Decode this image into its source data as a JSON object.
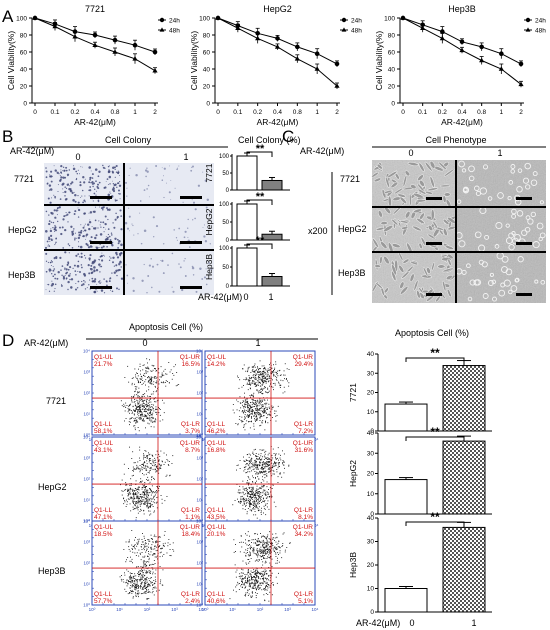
{
  "panels": {
    "A": "A",
    "B": "B",
    "C": "C",
    "D": "D"
  },
  "common": {
    "xlabel": "AR-42(μM)",
    "ylabel": "Cell Viability(%)",
    "yticks": [
      "0",
      "20",
      "40",
      "60",
      "80",
      "100"
    ],
    "xticks": [
      "0",
      "0.1",
      "0.2",
      "0.4",
      "0.8",
      "1",
      "2"
    ],
    "legend": [
      "24h",
      "48h"
    ],
    "treatment_label": "AR-42(μM)",
    "dose_labels": [
      "0",
      "1"
    ],
    "sig": "**",
    "magnification": "x200"
  },
  "panelB": {
    "title": "Cell Colony",
    "chart_title": "Cell Colony (%)",
    "yticks": [
      "0",
      "50",
      "100"
    ]
  },
  "panelC": {
    "title": "Cell Phenotype"
  },
  "panelD": {
    "title": "Apoptosis Cell (%)",
    "chart_title": "Apoptosis Cell (%)",
    "quad_labels": [
      "Q1-UL",
      "Q1-UR",
      "Q1-LL",
      "Q1-LR"
    ],
    "log_ticks": [
      "10⁰",
      "10¹",
      "10²",
      "10³",
      "10⁴"
    ],
    "yticks": [
      "0",
      "10",
      "20",
      "30",
      "40"
    ]
  },
  "chart_data": [
    {
      "type": "line",
      "title": "7721",
      "xlabel": "AR-42(μM)",
      "ylabel": "Cell Viability(%)",
      "ylim": [
        0,
        100
      ],
      "categories": [
        "0",
        "0.1",
        "0.2",
        "0.4",
        "0.8",
        "1",
        "2"
      ],
      "series": [
        {
          "name": "24h",
          "values": [
            100,
            93,
            84,
            80,
            74,
            68,
            60
          ]
        },
        {
          "name": "48h",
          "values": [
            100,
            90,
            78,
            68,
            60,
            52,
            38
          ]
        }
      ]
    },
    {
      "type": "line",
      "title": "HepG2",
      "xlabel": "AR-42(μM)",
      "ylabel": "Cell Viability(%)",
      "ylim": [
        0,
        100
      ],
      "categories": [
        "0",
        "0.1",
        "0.2",
        "0.4",
        "0.8",
        "1",
        "2"
      ],
      "series": [
        {
          "name": "24h",
          "values": [
            100,
            91,
            82,
            76,
            66,
            58,
            46
          ]
        },
        {
          "name": "48h",
          "values": [
            100,
            88,
            76,
            66,
            52,
            40,
            20
          ]
        }
      ]
    },
    {
      "type": "line",
      "title": "Hep3B",
      "xlabel": "AR-42(μM)",
      "ylabel": "Cell Viability(%)",
      "ylim": [
        0,
        100
      ],
      "categories": [
        "0",
        "0.1",
        "0.2",
        "0.4",
        "0.8",
        "1",
        "2"
      ],
      "series": [
        {
          "name": "24h",
          "values": [
            100,
            92,
            84,
            72,
            66,
            58,
            46
          ]
        },
        {
          "name": "48h",
          "values": [
            100,
            88,
            76,
            62,
            50,
            40,
            22
          ]
        }
      ]
    },
    {
      "type": "bar",
      "ylabel": "7721",
      "categories": [
        "0",
        "1"
      ],
      "values": [
        100,
        28
      ],
      "ylim": [
        0,
        100
      ]
    },
    {
      "type": "bar",
      "ylabel": "HepG2",
      "categories": [
        "0",
        "1"
      ],
      "values": [
        100,
        16
      ],
      "ylim": [
        0,
        100
      ]
    },
    {
      "type": "bar",
      "ylabel": "Hep3B",
      "categories": [
        "0",
        "1"
      ],
      "values": [
        100,
        25
      ],
      "ylim": [
        0,
        100
      ]
    },
    {
      "type": "table",
      "rows": [
        "7721",
        "HepG2",
        "Hep3B"
      ],
      "columns": [
        "0",
        "1"
      ],
      "quadrants": [
        [
          {
            "UL": "21.7%",
            "UR": "16.5%",
            "LL": "58.1%",
            "LR": "3.7%"
          },
          {
            "UL": "14.2%",
            "UR": "29.4%",
            "LL": "46.2%",
            "LR": "7.2%"
          }
        ],
        [
          {
            "UL": "43.1%",
            "UR": "8.7%",
            "LL": "47.1%",
            "LR": "1.1%"
          },
          {
            "UL": "16.8%",
            "UR": "31.6%",
            "LL": "43.5%",
            "LR": "8.1%"
          }
        ],
        [
          {
            "UL": "18.5%",
            "UR": "18.4%",
            "LL": "57.7%",
            "LR": "2.4%"
          },
          {
            "UL": "20.1%",
            "UR": "34.2%",
            "LL": "40.6%",
            "LR": "5.1%"
          }
        ]
      ]
    },
    {
      "type": "bar",
      "ylabel": "7721",
      "categories": [
        "0",
        "1"
      ],
      "values": [
        14,
        34
      ],
      "ylim": [
        0,
        40
      ]
    },
    {
      "type": "bar",
      "ylabel": "HepG2",
      "categories": [
        "0",
        "1"
      ],
      "values": [
        17,
        36
      ],
      "ylim": [
        0,
        40
      ]
    },
    {
      "type": "bar",
      "ylabel": "Hep3B",
      "categories": [
        "0",
        "1"
      ],
      "values": [
        10,
        36
      ],
      "ylim": [
        0,
        40
      ]
    }
  ]
}
